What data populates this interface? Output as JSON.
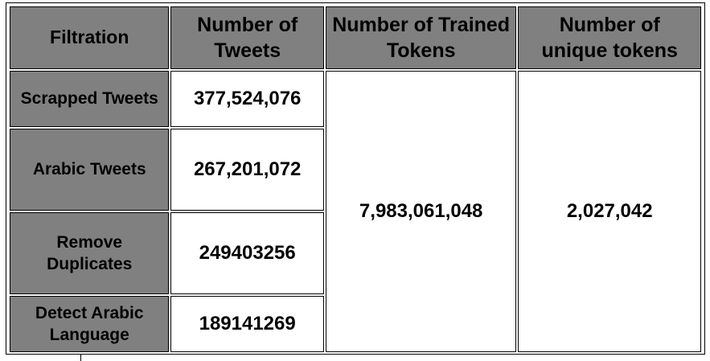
{
  "table": {
    "headers": [
      "Filtration",
      "Number of Tweets",
      "Number of Trained Tokens",
      "Number of unique tokens"
    ],
    "rows": [
      {
        "label": "Scrapped Tweets",
        "tweets": "377,524,076"
      },
      {
        "label": "Arabic Tweets",
        "tweets": "267,201,072"
      },
      {
        "label": "Remove Duplicates",
        "tweets": "249403256"
      },
      {
        "label": "Detect Arabic Language",
        "tweets": "189141269"
      }
    ],
    "trained_tokens": "7,983,061,048",
    "unique_tokens": "2,027,042"
  },
  "colors": {
    "header_bg": "#808080",
    "cell_bg": "#ffffff",
    "border": "#000000"
  }
}
